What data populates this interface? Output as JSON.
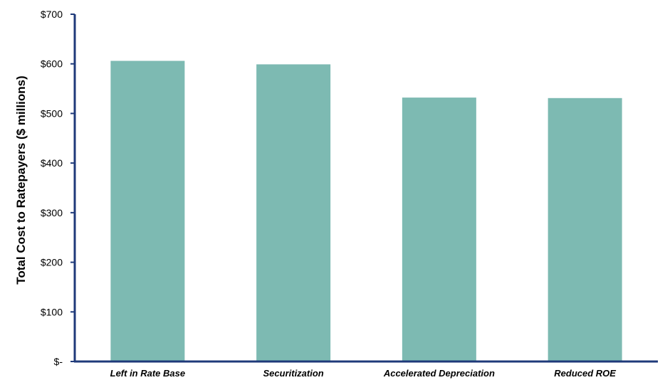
{
  "chart_data": {
    "type": "bar",
    "title": "",
    "xlabel": "",
    "ylabel": "Total Cost to Ratepayers ($ millions)",
    "categories": [
      "Left in Rate Base",
      "Securitization",
      "Accelerated Depreciation",
      "Reduced ROE"
    ],
    "values": [
      606,
      599,
      532,
      531
    ],
    "ylim": [
      0,
      700
    ],
    "yticks": [
      0,
      100,
      200,
      300,
      400,
      500,
      600,
      700
    ],
    "ytick_labels": [
      "$-",
      "$100",
      "$200",
      "$300",
      "$400",
      "$500",
      "$600",
      "$700"
    ],
    "grid": false,
    "legend": "none",
    "colors": {
      "bar": "#7dbab2",
      "axis": "#1f3a7a"
    }
  }
}
